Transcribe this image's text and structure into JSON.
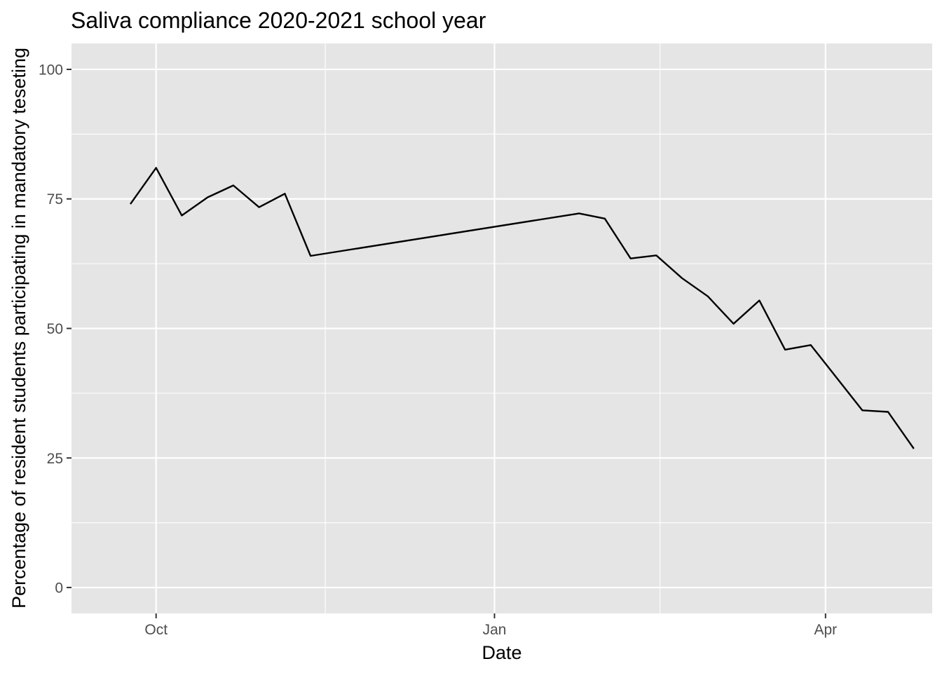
{
  "chart_data": {
    "type": "line",
    "title": "Saliva compliance 2020-2021 school year",
    "xlabel": "Date",
    "ylabel": "Percentage of resident students participating in mandatory teseting",
    "x_type": "date",
    "xlim": [
      "2020-09-08",
      "2021-04-30"
    ],
    "ylim": [
      -5,
      105
    ],
    "x_ticks": [
      {
        "value": "2020-10-01",
        "label": "Oct"
      },
      {
        "value": "2021-01-01",
        "label": "Jan"
      },
      {
        "value": "2021-04-01",
        "label": "Apr"
      }
    ],
    "x_minor_gridlines": [
      "2020-11-16",
      "2021-02-15"
    ],
    "y_ticks": [
      0,
      25,
      50,
      75,
      100
    ],
    "y_minor_gridlines": [
      12.5,
      37.5,
      62.5,
      87.5
    ],
    "grid": true,
    "legend": "none",
    "colors": {
      "panel_background": "#e5e5e5",
      "gridline": "#ffffff",
      "line": "#000000",
      "tick_label": "#4d4d4d",
      "tick_mark": "#333333"
    },
    "series": [
      {
        "x": [
          "2020-09-24",
          "2020-10-01",
          "2020-10-08",
          "2020-10-15",
          "2020-10-22",
          "2020-10-29",
          "2020-11-05",
          "2020-11-12",
          "2021-01-24",
          "2021-01-31",
          "2021-02-07",
          "2021-02-14",
          "2021-02-21",
          "2021-02-28",
          "2021-03-07",
          "2021-03-14",
          "2021-03-21",
          "2021-03-28",
          "2021-04-04",
          "2021-04-11",
          "2021-04-18",
          "2021-04-25"
        ],
        "y": [
          74.0,
          81.0,
          71.8,
          75.3,
          77.6,
          73.4,
          76.0,
          64.0,
          72.2,
          71.2,
          63.5,
          64.1,
          59.7,
          56.2,
          50.9,
          55.4,
          45.9,
          46.8,
          40.5,
          34.2,
          33.9,
          26.8
        ]
      }
    ]
  }
}
